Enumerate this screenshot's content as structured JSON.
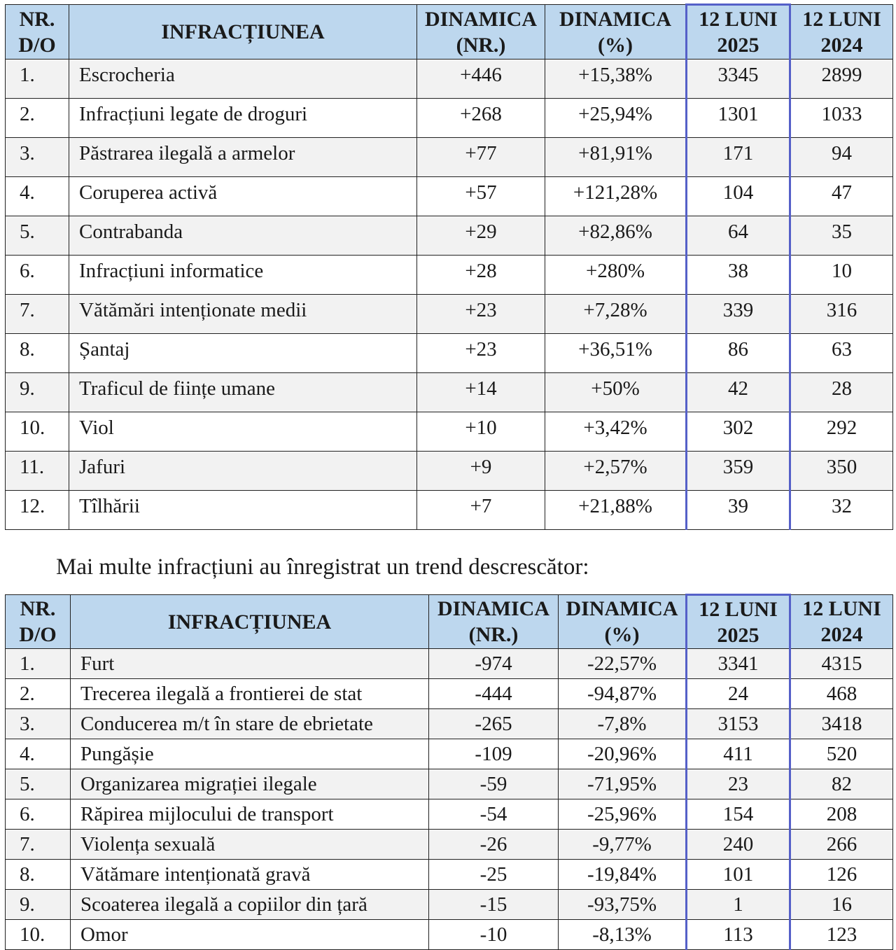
{
  "headers": {
    "nr": "NR.",
    "do": "D/O",
    "infr": "INFRACȚIUNEA",
    "dnr1": "DINAMICA",
    "dnr2": "(NR.)",
    "dp1": "DINAMICA",
    "dp2": "(%)",
    "y25a": "12 LUNI",
    "y25b": "2025",
    "y24a": "12 LUNI",
    "y24b": "2024"
  },
  "increasing": [
    [
      "1.",
      "Escrocheria",
      "+446",
      "+15,38%",
      "3345",
      "2899"
    ],
    [
      "2.",
      "Infracțiuni legate de droguri",
      "+268",
      "+25,94%",
      "1301",
      "1033"
    ],
    [
      "3.",
      "Păstrarea ilegală a armelor",
      "+77",
      "+81,91%",
      "171",
      "94"
    ],
    [
      "4.",
      "Coruperea activă",
      "+57",
      "+121,28%",
      "104",
      "47"
    ],
    [
      "5.",
      "Contrabanda",
      "+29",
      "+82,86%",
      "64",
      "35"
    ],
    [
      "6.",
      "Infracțiuni informatice",
      "+28",
      "+280%",
      "38",
      "10"
    ],
    [
      "7.",
      "Vătămări intenționate medii",
      "+23",
      "+7,28%",
      "339",
      "316"
    ],
    [
      "8.",
      "Șantaj",
      "+23",
      "+36,51%",
      "86",
      "63"
    ],
    [
      "9.",
      "Traficul de ființe umane",
      "+14",
      "+50%",
      "42",
      "28"
    ],
    [
      "10.",
      "Viol",
      "+10",
      "+3,42%",
      "302",
      "292"
    ],
    [
      "11.",
      "Jafuri",
      "+9",
      "+2,57%",
      "359",
      "350"
    ],
    [
      "12.",
      "Tîlhării",
      "+7",
      "+21,88%",
      "39",
      "32"
    ]
  ],
  "subtitle": "Mai multe infracțiuni au înregistrat un trend descrescător:",
  "decreasing": [
    [
      "1.",
      "Furt",
      "-974",
      "-22,57%",
      "3341",
      "4315"
    ],
    [
      "2.",
      "Trecerea ilegală a frontierei de stat",
      "-444",
      "-94,87%",
      "24",
      "468"
    ],
    [
      "3.",
      "Conducerea m/t în stare de ebrietate",
      "-265",
      "-7,8%",
      "3153",
      "3418"
    ],
    [
      "4.",
      "Pungășie",
      "-109",
      "-20,96%",
      "411",
      "520"
    ],
    [
      "5.",
      "Organizarea migrației ilegale",
      "-59",
      "-71,95%",
      "23",
      "82"
    ],
    [
      "6.",
      "Răpirea mijlocului de transport",
      "-54",
      "-25,96%",
      "154",
      "208"
    ],
    [
      "7.",
      "Violența sexuală",
      "-26",
      "-9,77%",
      "240",
      "266"
    ],
    [
      "8.",
      "Vătămare intenționată gravă",
      "-25",
      "-19,84%",
      "101",
      "126"
    ],
    [
      "9.",
      "Scoaterea ilegală a copiilor din țară",
      "-15",
      "-93,75%",
      "1",
      "16"
    ],
    [
      "10.",
      "Omor",
      "-10",
      "-8,13%",
      "113",
      "123"
    ]
  ],
  "colors": {
    "header_bg": "#bdd7ee",
    "highlight_border": "#5560c8",
    "alt_row": "#f2f2f2"
  }
}
